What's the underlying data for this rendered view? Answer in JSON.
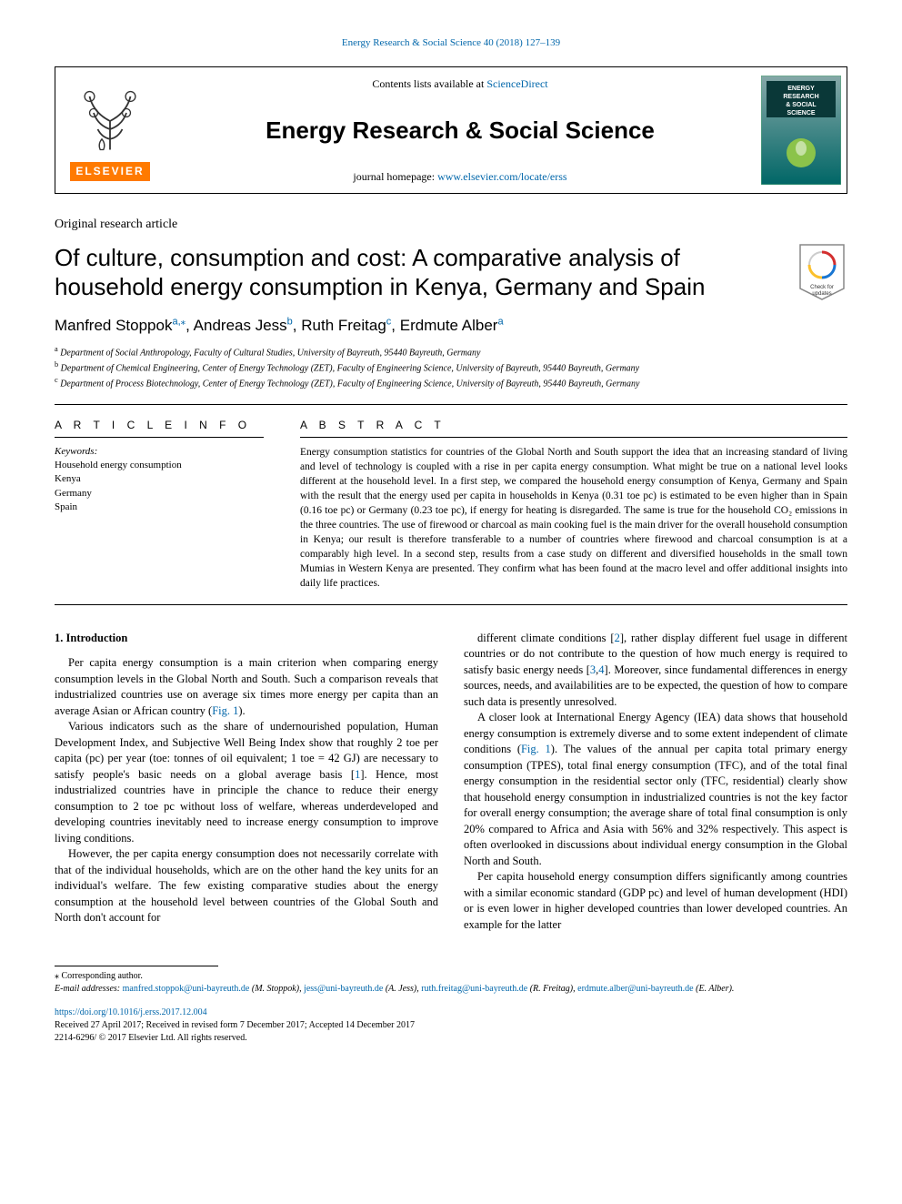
{
  "top_citation": {
    "prefix": "Energy Research & Social Science 40 (2018) 127–139"
  },
  "header": {
    "contents_prefix": "Contents lists available at ",
    "contents_link": "ScienceDirect",
    "journal_name": "Energy Research & Social Science",
    "homepage_prefix": "journal homepage: ",
    "homepage_url": "www.elsevier.com/locate/erss",
    "elsevier_word": "ELSEVIER"
  },
  "journal_cover": {
    "title_lines": [
      "ENERGY",
      "RESEARCH",
      "& SOCIAL",
      "SCIENCE"
    ],
    "bg_top": "#86a8a8",
    "bg_bottom": "#006666",
    "accent": "#8bc34a"
  },
  "crossmark": {
    "line1": "Check for",
    "line2": "updates"
  },
  "article": {
    "type": "Original research article",
    "title": "Of culture, consumption and cost: A comparative analysis of household energy consumption in Kenya, Germany and Spain"
  },
  "authors": [
    {
      "name": "Manfred Stoppok",
      "aff": "a,",
      "corr": "⁎"
    },
    {
      "name": "Andreas Jess",
      "aff": "b",
      "corr": ""
    },
    {
      "name": "Ruth Freitag",
      "aff": "c",
      "corr": ""
    },
    {
      "name": "Erdmute Alber",
      "aff": "a",
      "corr": ""
    }
  ],
  "affiliations": [
    {
      "sup": "a",
      "text": "Department of Social Anthropology, Faculty of Cultural Studies, University of Bayreuth, 95440 Bayreuth, Germany"
    },
    {
      "sup": "b",
      "text": "Department of Chemical Engineering, Center of Energy Technology (ZET), Faculty of Engineering Science, University of Bayreuth, 95440 Bayreuth, Germany"
    },
    {
      "sup": "c",
      "text": "Department of Process Biotechnology, Center of Energy Technology (ZET), Faculty of Engineering Science, University of Bayreuth, 95440 Bayreuth, Germany"
    }
  ],
  "info": {
    "heading": "A R T I C L E  I N F O",
    "keywords_label": "Keywords:",
    "keywords": [
      "Household energy consumption",
      "Kenya",
      "Germany",
      "Spain"
    ]
  },
  "abstract": {
    "heading": "A B S T R A C T",
    "text": "Energy consumption statistics for countries of the Global North and South support the idea that an increasing standard of living and level of technology is coupled with a rise in per capita energy consumption. What might be true on a national level looks different at the household level. In a first step, we compared the household energy consumption of Kenya, Germany and Spain with the result that the energy used per capita in households in Kenya (0.31 toe pc) is estimated to be even higher than in Spain (0.16 toe pc) or Germany (0.23 toe pc), if energy for heating is disregarded. The same is true for the household CO₂ emissions in the three countries. The use of firewood or charcoal as main cooking fuel is the main driver for the overall household consumption in Kenya; our result is therefore transferable to a number of countries where firewood and charcoal consumption is at a comparably high level. In a second step, results from a case study on different and diversified households in the small town Mumias in Western Kenya are presented. They confirm what has been found at the macro level and offer additional insights into daily life practices."
  },
  "body": {
    "section1_heading": "1. Introduction",
    "paragraphs": [
      "Per capita energy consumption is a main criterion when comparing energy consumption levels in the Global North and South. Such a comparison reveals that industrialized countries use on average six times more energy per capita than an average Asian or African country (Fig. 1).",
      "Various indicators such as the share of undernourished population, Human Development Index, and Subjective Well Being Index show that roughly 2 toe per capita (pc) per year (toe: tonnes of oil equivalent; 1 toe = 42 GJ) are necessary to satisfy people's basic needs on a global average basis [1]. Hence, most industrialized countries have in principle the chance to reduce their energy consumption to 2 toe pc without loss of welfare, whereas underdeveloped and developing countries inevitably need to increase energy consumption to improve living conditions.",
      "However, the per capita energy consumption does not necessarily correlate with that of the individual households, which are on the other hand the key units for an individual's welfare. The few existing comparative studies about the energy consumption at the household level between countries of the Global South and North don't account for",
      "different climate conditions [2], rather display different fuel usage in different countries or do not contribute to the question of how much energy is required to satisfy basic energy needs [3,4]. Moreover, since fundamental differences in energy sources, needs, and availabilities are to be expected, the question of how to compare such data is presently unresolved.",
      "A closer look at International Energy Agency (IEA) data shows that household energy consumption is extremely diverse and to some extent independent of climate conditions (Fig. 1). The values of the annual per capita total primary energy consumption (TPES), total final energy consumption (TFC), and of the total final energy consumption in the residential sector only (TFC, residential) clearly show that household energy consumption in industrialized countries is not the key factor for overall energy consumption; the average share of total final consumption is only 20% compared to Africa and Asia with 56% and 32% respectively. This aspect is often overlooked in discussions about individual energy consumption in the Global North and South.",
      "Per capita household energy consumption differs significantly among countries with a similar economic standard (GDP pc) and level of human development (HDI) or is even lower in higher developed countries than lower developed countries. An example for the latter"
    ],
    "fig_ref": "Fig. 1",
    "cite_refs": [
      "1",
      "2",
      "3",
      "4"
    ]
  },
  "footnotes": {
    "corresponding": "⁎ Corresponding author.",
    "emails_label": "E-mail addresses: ",
    "emails": [
      {
        "addr": "manfred.stoppok@uni-bayreuth.de",
        "who": "(M. Stoppok)"
      },
      {
        "addr": "jess@uni-bayreuth.de",
        "who": "(A. Jess)"
      },
      {
        "addr": "ruth.freitag@uni-bayreuth.de",
        "who": "(R. Freitag)"
      },
      {
        "addr": "erdmute.alber@uni-bayreuth.de",
        "who": "(E. Alber)."
      }
    ]
  },
  "doi": {
    "url": "https://doi.org/10.1016/j.erss.2017.12.004",
    "history": "Received 27 April 2017; Received in revised form 7 December 2017; Accepted 14 December 2017",
    "copyright": "2214-6296/ © 2017 Elsevier Ltd. All rights reserved."
  },
  "colors": {
    "link": "#0066aa",
    "elsevier_orange": "#ff7a00",
    "text": "#000000"
  }
}
